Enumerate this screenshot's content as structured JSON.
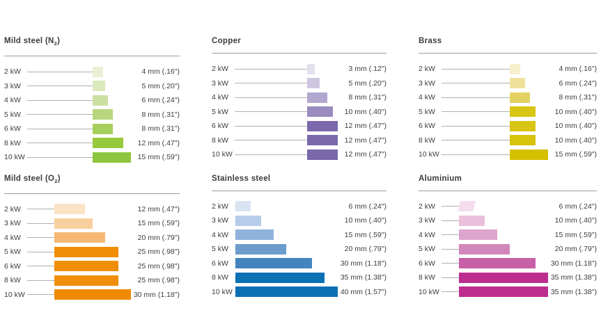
{
  "page": {
    "background": "#ffffff",
    "text_color": "#3c3c3c",
    "rule_color": "#9b9b9b",
    "leader_line_color": "#b0b0b0"
  },
  "chart_data": [
    {
      "type": "bar",
      "title": "Mild steel (N2)",
      "title_base": "Mild steel (N",
      "title_sub": "2",
      "title_tail": ")",
      "categories": [
        "2 kW",
        "3 kW",
        "4 kW",
        "5 kW",
        "6 kW",
        "8 kW",
        "10 kW"
      ],
      "values_mm": [
        4,
        5,
        6,
        8,
        8,
        12,
        15
      ],
      "value_labels": [
        "4 mm (.16\")",
        "5 mm (.20\")",
        "6 mm (.24\")",
        "8 mm (.31\")",
        "8 mm (.31\")",
        "12 mm (.47\")",
        "15 mm (.59\")"
      ],
      "bar_colors": [
        "#EAF1D5",
        "#DBE9BB",
        "#CBE0A0",
        "#B8D67C",
        "#A6CE5B",
        "#97C93D",
        "#8EC63F"
      ],
      "xlim_mm": [
        0,
        15
      ],
      "legend": "none",
      "grid": "off"
    },
    {
      "type": "bar",
      "title": "Copper",
      "title_base": "Copper",
      "title_sub": "",
      "title_tail": "",
      "categories": [
        "2 kW",
        "3 kW",
        "4 kW",
        "5 kW",
        "6 kW",
        "8 kW",
        "10 kW"
      ],
      "values_mm": [
        3,
        5,
        8,
        10,
        12,
        12,
        12
      ],
      "value_labels": [
        "3 mm (.12\")",
        "5 mm (.20\")",
        "8 mm (.31\")",
        "10 mm (.40\")",
        "12 mm (.47\")",
        "12 mm (.47\")",
        "12 mm (.47\")"
      ],
      "bar_colors": [
        "#E4E0EE",
        "#CFC7E1",
        "#B2A7CF",
        "#9A8CBF",
        "#7B69AB",
        "#7968AA",
        "#7968AA"
      ],
      "xlim_mm": [
        0,
        12
      ],
      "legend": "none",
      "grid": "off"
    },
    {
      "type": "bar",
      "title": "Brass",
      "title_base": "Brass",
      "title_sub": "",
      "title_tail": "",
      "categories": [
        "2 kW",
        "3 kW",
        "4 kW",
        "5 kW",
        "6 kW",
        "8 kW",
        "10 kW"
      ],
      "values_mm": [
        4,
        6,
        8,
        10,
        10,
        10,
        15
      ],
      "value_labels": [
        "4 mm (.16\")",
        "6 mm (.24\")",
        "8 mm (.31\")",
        "10 mm (.40\")",
        "10 mm (.40\")",
        "10 mm (.40\")",
        "15 mm (.59\")"
      ],
      "bar_colors": [
        "#F6F0CC",
        "#EFE19C",
        "#E3D262",
        "#D9C513",
        "#D9C513",
        "#D7C30B",
        "#D5C000"
      ],
      "xlim_mm": [
        0,
        15
      ],
      "legend": "none",
      "grid": "off"
    },
    {
      "type": "bar",
      "title": "Mild steel (O2)",
      "title_base": "Mild steel (O",
      "title_sub": "2",
      "title_tail": ")",
      "categories": [
        "2 kW",
        "3 kW",
        "4 kW",
        "5 kW",
        "6 kW",
        "8 kW",
        "10 kW"
      ],
      "values_mm": [
        12,
        15,
        20,
        25,
        25,
        25,
        30
      ],
      "value_labels": [
        "12 mm (.47\")",
        "15 mm (.59\")",
        "20 mm (.79\")",
        "25 mm (.98\")",
        "25 mm (.98\")",
        "25 mm (.98\")",
        "30 mm (1.18\")"
      ],
      "bar_colors": [
        "#FBE3C6",
        "#F9CFA0",
        "#F6B775",
        "#F08E07",
        "#F08E07",
        "#F08E07",
        "#EF8A00"
      ],
      "xlim_mm": [
        0,
        30
      ],
      "legend": "none",
      "grid": "off"
    },
    {
      "type": "bar",
      "title": "Stainless steel",
      "title_base": "Stainless steel",
      "title_sub": "",
      "title_tail": "",
      "categories": [
        "2 kW",
        "3 kW",
        "4 kW",
        "5 kW",
        "6 kW",
        "8 kW",
        "10 kW"
      ],
      "values_mm": [
        6,
        10,
        15,
        20,
        30,
        35,
        40
      ],
      "value_labels": [
        "6 mm (.24\")",
        "10 mm (.40\")",
        "15 mm (.59\")",
        "20 mm (.79\")",
        "30 mm (1.18\")",
        "35 mm (1.38\")",
        "40 mm (1.57\")"
      ],
      "bar_colors": [
        "#D9E3F2",
        "#B7CCE9",
        "#8FB2DB",
        "#6B9CCB",
        "#4484BE",
        "#0C70B5",
        "#0C70B5"
      ],
      "xlim_mm": [
        0,
        40
      ],
      "legend": "none",
      "grid": "off"
    },
    {
      "type": "bar",
      "title": "Aluminium",
      "title_base": "Aluminium",
      "title_sub": "",
      "title_tail": "",
      "first_bar_skew": true,
      "categories": [
        "2 kW",
        "3 kW",
        "4 kW",
        "5 kW",
        "6 kW",
        "8 kW",
        "10 kW"
      ],
      "values_mm": [
        6,
        10,
        15,
        20,
        30,
        35,
        35
      ],
      "value_labels": [
        "6 mm (.24\")",
        "10 mm (.40\")",
        "15 mm (.59\")",
        "20 mm (.79\")",
        "30 mm (1.18\")",
        "35 mm (1.38\")",
        "35 mm (1.38\")"
      ],
      "bar_colors": [
        "#F4DEEE",
        "#E9BFDC",
        "#DDA4CD",
        "#D287BB",
        "#C760A6",
        "#BD2E8E",
        "#BD2E8E"
      ],
      "xlim_mm": [
        0,
        35
      ],
      "legend": "none",
      "grid": "off"
    }
  ]
}
